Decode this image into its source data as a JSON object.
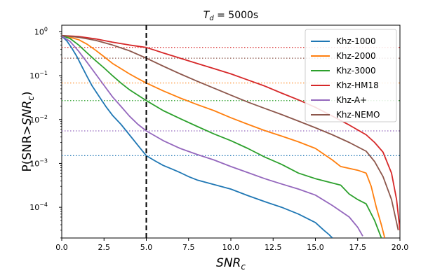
{
  "chart_data": {
    "type": "line",
    "title_base": "T",
    "title_sub": "d",
    "title_rest": " = 5000s",
    "xlabel_base": "SNR",
    "xlabel_sub": "c",
    "ylabel_prefix": "P(SNR>",
    "ylabel_base": "SNR",
    "ylabel_sub": "c",
    "ylabel_suffix": ")",
    "xlim": [
      0,
      20
    ],
    "ylim_log10": [
      -4.7,
      0.15
    ],
    "xticks": [
      0.0,
      2.5,
      5.0,
      7.5,
      10.0,
      12.5,
      15.0,
      17.5,
      20.0
    ],
    "xtick_labels": [
      "0.0",
      "2.5",
      "5.0",
      "7.5",
      "10.0",
      "12.5",
      "15.0",
      "17.5",
      "20.0"
    ],
    "yticks_log10": [
      0,
      -1,
      -2,
      -3,
      -4
    ],
    "ytick_base": "10",
    "ytick_exps": [
      "0",
      "−1",
      "−2",
      "−3",
      "−4"
    ],
    "threshold_x": 5.0,
    "legend_position": "top-right",
    "series": [
      {
        "name": "Khz-1000",
        "color": "#1f77b4",
        "threshold_value": 0.0015,
        "points": [
          [
            0,
            0.8
          ],
          [
            0.3,
            0.62
          ],
          [
            0.6,
            0.42
          ],
          [
            0.9,
            0.27
          ],
          [
            1.2,
            0.16
          ],
          [
            1.5,
            0.095
          ],
          [
            1.8,
            0.058
          ],
          [
            2.2,
            0.034
          ],
          [
            2.6,
            0.02
          ],
          [
            3.0,
            0.0125
          ],
          [
            3.5,
            0.0078
          ],
          [
            4.0,
            0.0045
          ],
          [
            4.5,
            0.0026
          ],
          [
            5.0,
            0.0015
          ],
          [
            5.5,
            0.00115
          ],
          [
            6.0,
            0.0009
          ],
          [
            6.5,
            0.00075
          ],
          [
            7.0,
            0.00062
          ],
          [
            7.5,
            0.0005
          ],
          [
            8.0,
            0.00042
          ],
          [
            9.0,
            0.00033
          ],
          [
            10.0,
            0.00026
          ],
          [
            11.0,
            0.000185
          ],
          [
            12.0,
            0.000135
          ],
          [
            13.0,
            0.0001
          ],
          [
            14.0,
            7e-05
          ],
          [
            15.0,
            4.5e-05
          ],
          [
            15.5,
            3e-05
          ],
          [
            15.8,
            2.4e-05
          ],
          [
            16.0,
            2e-05
          ]
        ]
      },
      {
        "name": "Khz-2000",
        "color": "#ff7f0e",
        "threshold_value": 0.068,
        "points": [
          [
            0,
            0.82
          ],
          [
            0.5,
            0.75
          ],
          [
            1.0,
            0.66
          ],
          [
            1.5,
            0.52
          ],
          [
            2.0,
            0.38
          ],
          [
            2.5,
            0.27
          ],
          [
            3.0,
            0.19
          ],
          [
            3.5,
            0.145
          ],
          [
            4.0,
            0.11
          ],
          [
            4.5,
            0.086
          ],
          [
            5.0,
            0.068
          ],
          [
            6.0,
            0.045
          ],
          [
            7.0,
            0.031
          ],
          [
            8.0,
            0.022
          ],
          [
            9.0,
            0.016
          ],
          [
            10.0,
            0.011
          ],
          [
            11.0,
            0.0078
          ],
          [
            12.0,
            0.0056
          ],
          [
            13.0,
            0.0042
          ],
          [
            14.0,
            0.0031
          ],
          [
            15.0,
            0.0022
          ],
          [
            16.0,
            0.0012
          ],
          [
            16.5,
            0.00085
          ],
          [
            17.5,
            0.0007
          ],
          [
            18.0,
            0.0006
          ],
          [
            18.3,
            0.0003
          ],
          [
            18.6,
            0.0001
          ],
          [
            18.9,
            4e-05
          ],
          [
            19.1,
            2e-05
          ]
        ]
      },
      {
        "name": "Khz-3000",
        "color": "#2ca02c",
        "threshold_value": 0.027,
        "points": [
          [
            0,
            0.82
          ],
          [
            0.5,
            0.7
          ],
          [
            1.0,
            0.5
          ],
          [
            1.5,
            0.33
          ],
          [
            2.0,
            0.22
          ],
          [
            2.5,
            0.15
          ],
          [
            3.0,
            0.1
          ],
          [
            3.5,
            0.068
          ],
          [
            4.0,
            0.048
          ],
          [
            4.5,
            0.036
          ],
          [
            5.0,
            0.027
          ],
          [
            6.0,
            0.016
          ],
          [
            7.0,
            0.0105
          ],
          [
            8.0,
            0.007
          ],
          [
            9.0,
            0.0047
          ],
          [
            10.0,
            0.0033
          ],
          [
            11.0,
            0.0022
          ],
          [
            12.0,
            0.0014
          ],
          [
            13.0,
            0.00095
          ],
          [
            14.0,
            0.0006
          ],
          [
            15.0,
            0.00045
          ],
          [
            16.5,
            0.00032
          ],
          [
            17.0,
            0.0002
          ],
          [
            17.5,
            0.00015
          ],
          [
            18.0,
            0.00012
          ],
          [
            18.5,
            5e-05
          ],
          [
            18.9,
            2e-05
          ]
        ]
      },
      {
        "name": "Khz-HM18",
        "color": "#d62728",
        "threshold_value": 0.44,
        "points": [
          [
            0,
            0.82
          ],
          [
            1.0,
            0.78
          ],
          [
            2.0,
            0.69
          ],
          [
            3.0,
            0.58
          ],
          [
            4.0,
            0.5
          ],
          [
            5.0,
            0.44
          ],
          [
            5.5,
            0.38
          ],
          [
            6.0,
            0.33
          ],
          [
            7.0,
            0.25
          ],
          [
            8.0,
            0.19
          ],
          [
            9.0,
            0.145
          ],
          [
            10.0,
            0.11
          ],
          [
            11.0,
            0.08
          ],
          [
            12.0,
            0.058
          ],
          [
            13.0,
            0.04
          ],
          [
            14.0,
            0.028
          ],
          [
            15.0,
            0.019
          ],
          [
            16.0,
            0.012
          ],
          [
            17.0,
            0.0075
          ],
          [
            18.0,
            0.0045
          ],
          [
            18.5,
            0.003
          ],
          [
            19.0,
            0.0018
          ],
          [
            19.5,
            0.0006
          ],
          [
            19.8,
            0.00015
          ],
          [
            20.0,
            3e-05
          ]
        ]
      },
      {
        "name": "Khz-A+",
        "color": "#9467bd",
        "threshold_value": 0.0055,
        "points": [
          [
            0,
            0.8
          ],
          [
            0.5,
            0.6
          ],
          [
            1.0,
            0.36
          ],
          [
            1.5,
            0.2
          ],
          [
            2.0,
            0.11
          ],
          [
            2.5,
            0.06
          ],
          [
            3.0,
            0.033
          ],
          [
            3.5,
            0.02
          ],
          [
            4.0,
            0.012
          ],
          [
            4.5,
            0.0078
          ],
          [
            5.0,
            0.0055
          ],
          [
            6.0,
            0.0033
          ],
          [
            7.0,
            0.0022
          ],
          [
            8.0,
            0.0016
          ],
          [
            9.0,
            0.0012
          ],
          [
            10.0,
            0.00085
          ],
          [
            11.0,
            0.00062
          ],
          [
            12.0,
            0.00045
          ],
          [
            13.0,
            0.00034
          ],
          [
            14.0,
            0.00026
          ],
          [
            15.0,
            0.00019
          ],
          [
            16.0,
            0.00011
          ],
          [
            17.0,
            6e-05
          ],
          [
            17.5,
            3.5e-05
          ],
          [
            17.8,
            2.2e-05
          ]
        ]
      },
      {
        "name": "Khz-NEMO",
        "color": "#8c564b",
        "threshold_value": 0.25,
        "points": [
          [
            0,
            0.82
          ],
          [
            1.0,
            0.75
          ],
          [
            2.0,
            0.64
          ],
          [
            3.0,
            0.5
          ],
          [
            4.0,
            0.37
          ],
          [
            5.0,
            0.25
          ],
          [
            6.0,
            0.165
          ],
          [
            7.0,
            0.11
          ],
          [
            8.0,
            0.075
          ],
          [
            9.0,
            0.052
          ],
          [
            10.0,
            0.036
          ],
          [
            11.0,
            0.025
          ],
          [
            12.0,
            0.018
          ],
          [
            13.0,
            0.013
          ],
          [
            14.0,
            0.0092
          ],
          [
            15.0,
            0.0065
          ],
          [
            16.0,
            0.0045
          ],
          [
            17.0,
            0.003
          ],
          [
            18.0,
            0.0019
          ],
          [
            18.5,
            0.0011
          ],
          [
            19.0,
            0.0005
          ],
          [
            19.5,
            0.00015
          ],
          [
            19.9,
            3e-05
          ]
        ]
      }
    ]
  }
}
